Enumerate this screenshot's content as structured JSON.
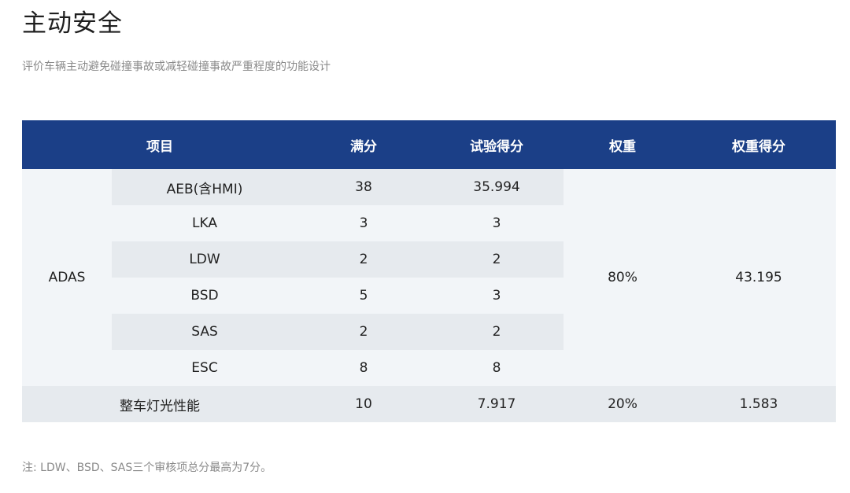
{
  "title": "主动安全",
  "subtitle": "评价车辆主动避免碰撞事故或减轻碰撞事故严重程度的功能设计",
  "table": {
    "headers": {
      "item": "项目",
      "full_score": "满分",
      "test_score": "试验得分",
      "weight": "权重",
      "weighted_score": "权重得分"
    },
    "adas": {
      "group": "ADAS",
      "weight": "80%",
      "weighted_score": "43.195",
      "rows": [
        {
          "name": "AEB(含HMI)",
          "full": "38",
          "test": "35.994"
        },
        {
          "name": "LKA",
          "full": "3",
          "test": "3"
        },
        {
          "name": "LDW",
          "full": "2",
          "test": "2"
        },
        {
          "name": "BSD",
          "full": "5",
          "test": "3"
        },
        {
          "name": "SAS",
          "full": "2",
          "test": "2"
        },
        {
          "name": "ESC",
          "full": "8",
          "test": "8"
        }
      ]
    },
    "lighting": {
      "name": "整车灯光性能",
      "full": "10",
      "test": "7.917",
      "weight": "20%",
      "weighted_score": "1.583"
    }
  },
  "note": "注: LDW、BSD、SAS三个审核项总分最高为7分。"
}
